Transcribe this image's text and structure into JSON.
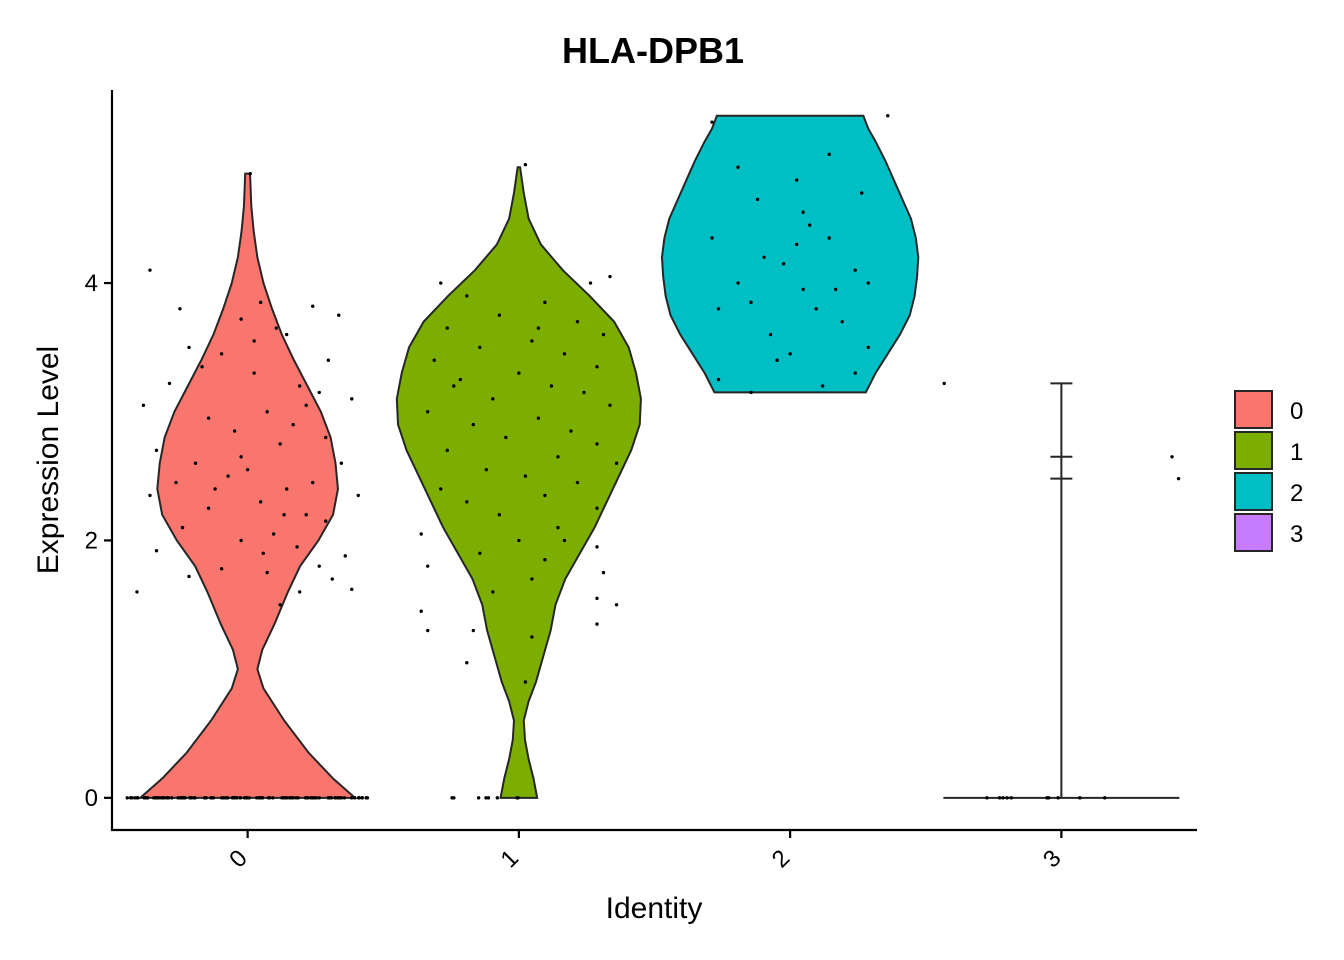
{
  "chart_data": {
    "type": "violin",
    "title": "HLA-DPB1",
    "xlabel": "Identity",
    "ylabel": "Expression Level",
    "categories": [
      "0",
      "1",
      "2",
      "3"
    ],
    "yticks": [
      0,
      2,
      4
    ],
    "ylim": [
      -0.25,
      5.5
    ],
    "colors": [
      "#F8766D",
      "#7CAE00",
      "#00BFC4",
      "#C77CFF"
    ],
    "legend": {
      "placement": "right",
      "entries": [
        "0",
        "1",
        "2",
        "3"
      ]
    },
    "series": [
      {
        "name": "0",
        "range": [
          0,
          4.85
        ],
        "density": [
          [
            0,
            0.88
          ],
          [
            0.15,
            0.7
          ],
          [
            0.35,
            0.5
          ],
          [
            0.6,
            0.3
          ],
          [
            0.85,
            0.13
          ],
          [
            1.0,
            0.08
          ],
          [
            1.15,
            0.12
          ],
          [
            1.35,
            0.22
          ],
          [
            1.6,
            0.33
          ],
          [
            1.8,
            0.43
          ],
          [
            2.0,
            0.58
          ],
          [
            2.2,
            0.7
          ],
          [
            2.4,
            0.74
          ],
          [
            2.6,
            0.72
          ],
          [
            2.8,
            0.68
          ],
          [
            3.0,
            0.6
          ],
          [
            3.2,
            0.49
          ],
          [
            3.4,
            0.38
          ],
          [
            3.6,
            0.28
          ],
          [
            3.8,
            0.2
          ],
          [
            4.0,
            0.13
          ],
          [
            4.2,
            0.08
          ],
          [
            4.4,
            0.05
          ],
          [
            4.6,
            0.03
          ],
          [
            4.85,
            0.02
          ]
        ],
        "zero_count": 120,
        "points": [
          [
            0.02,
            4.85
          ],
          [
            -0.75,
            4.1
          ],
          [
            -0.52,
            3.8
          ],
          [
            0.1,
            3.85
          ],
          [
            0.5,
            3.82
          ],
          [
            0.7,
            3.75
          ],
          [
            -0.05,
            3.72
          ],
          [
            0.3,
            3.6
          ],
          [
            -0.45,
            3.5
          ],
          [
            0.62,
            3.4
          ],
          [
            -0.2,
            3.45
          ],
          [
            0.05,
            3.3
          ],
          [
            0.4,
            3.2
          ],
          [
            -0.6,
            3.22
          ],
          [
            0.55,
            3.15
          ],
          [
            0.8,
            3.1
          ],
          [
            -0.8,
            3.05
          ],
          [
            0.15,
            3.0
          ],
          [
            -0.3,
            2.95
          ],
          [
            0.35,
            2.9
          ],
          [
            -0.1,
            2.85
          ],
          [
            0.6,
            2.8
          ],
          [
            -0.7,
            2.7
          ],
          [
            0.25,
            2.75
          ],
          [
            -0.4,
            2.6
          ],
          [
            0.72,
            2.6
          ],
          [
            0.0,
            2.55
          ],
          [
            -0.15,
            2.5
          ],
          [
            0.5,
            2.45
          ],
          [
            -0.55,
            2.45
          ],
          [
            0.3,
            2.4
          ],
          [
            0.85,
            2.35
          ],
          [
            -0.75,
            2.35
          ],
          [
            0.1,
            2.3
          ],
          [
            -0.3,
            2.25
          ],
          [
            0.45,
            2.2
          ],
          [
            0.6,
            2.15
          ],
          [
            -0.5,
            2.1
          ],
          [
            0.2,
            2.05
          ],
          [
            -0.05,
            2.0
          ],
          [
            0.38,
            1.95
          ],
          [
            -0.7,
            1.92
          ],
          [
            0.75,
            1.88
          ],
          [
            0.55,
            1.8
          ],
          [
            -0.2,
            1.78
          ],
          [
            0.15,
            1.75
          ],
          [
            0.65,
            1.7
          ],
          [
            -0.45,
            1.72
          ],
          [
            0.4,
            1.6
          ],
          [
            0.8,
            1.62
          ],
          [
            -0.85,
            1.6
          ],
          [
            0.25,
            1.5
          ],
          [
            0.05,
            3.55
          ],
          [
            0.22,
            3.65
          ],
          [
            -0.35,
            3.35
          ],
          [
            0.45,
            3.05
          ],
          [
            -0.05,
            2.65
          ],
          [
            0.28,
            2.2
          ],
          [
            0.12,
            1.9
          ],
          [
            -0.25,
            2.4
          ]
        ]
      },
      {
        "name": "1",
        "range": [
          0,
          4.9
        ],
        "density": [
          [
            0,
            0.15
          ],
          [
            0.15,
            0.12
          ],
          [
            0.3,
            0.08
          ],
          [
            0.45,
            0.05
          ],
          [
            0.6,
            0.04
          ],
          [
            0.75,
            0.08
          ],
          [
            0.9,
            0.14
          ],
          [
            1.1,
            0.2
          ],
          [
            1.3,
            0.26
          ],
          [
            1.5,
            0.3
          ],
          [
            1.7,
            0.38
          ],
          [
            1.9,
            0.5
          ],
          [
            2.1,
            0.62
          ],
          [
            2.3,
            0.72
          ],
          [
            2.5,
            0.82
          ],
          [
            2.7,
            0.92
          ],
          [
            2.9,
            0.99
          ],
          [
            3.1,
            1.0
          ],
          [
            3.3,
            0.96
          ],
          [
            3.5,
            0.9
          ],
          [
            3.7,
            0.78
          ],
          [
            3.9,
            0.58
          ],
          [
            4.1,
            0.36
          ],
          [
            4.3,
            0.18
          ],
          [
            4.5,
            0.08
          ],
          [
            4.7,
            0.04
          ],
          [
            4.9,
            0.01
          ]
        ],
        "zero_count": 8,
        "points": [
          [
            0.05,
            4.92
          ],
          [
            -0.6,
            4.0
          ],
          [
            0.55,
            4.0
          ],
          [
            0.7,
            4.05
          ],
          [
            -0.4,
            3.9
          ],
          [
            0.2,
            3.85
          ],
          [
            -0.15,
            3.75
          ],
          [
            0.45,
            3.7
          ],
          [
            -0.55,
            3.65
          ],
          [
            0.65,
            3.6
          ],
          [
            0.1,
            3.55
          ],
          [
            -0.3,
            3.5
          ],
          [
            0.35,
            3.45
          ],
          [
            -0.65,
            3.4
          ],
          [
            0.6,
            3.35
          ],
          [
            0.0,
            3.3
          ],
          [
            -0.45,
            3.25
          ],
          [
            0.25,
            3.2
          ],
          [
            0.5,
            3.15
          ],
          [
            -0.2,
            3.1
          ],
          [
            0.7,
            3.05
          ],
          [
            -0.7,
            3.0
          ],
          [
            0.15,
            2.95
          ],
          [
            -0.35,
            2.9
          ],
          [
            0.4,
            2.85
          ],
          [
            -0.1,
            2.8
          ],
          [
            0.6,
            2.75
          ],
          [
            -0.55,
            2.7
          ],
          [
            0.3,
            2.65
          ],
          [
            0.75,
            2.6
          ],
          [
            -0.25,
            2.55
          ],
          [
            0.05,
            2.5
          ],
          [
            0.45,
            2.45
          ],
          [
            -0.6,
            2.4
          ],
          [
            0.2,
            2.35
          ],
          [
            -0.4,
            2.3
          ],
          [
            0.6,
            2.25
          ],
          [
            -0.15,
            2.2
          ],
          [
            0.3,
            2.1
          ],
          [
            -0.75,
            2.05
          ],
          [
            0.0,
            2.0
          ],
          [
            0.6,
            1.95
          ],
          [
            -0.3,
            1.9
          ],
          [
            0.2,
            1.85
          ],
          [
            -0.7,
            1.8
          ],
          [
            0.65,
            1.75
          ],
          [
            0.1,
            1.7
          ],
          [
            -0.2,
            1.6
          ],
          [
            0.6,
            1.55
          ],
          [
            -0.75,
            1.45
          ],
          [
            0.75,
            1.5
          ],
          [
            -0.35,
            1.3
          ],
          [
            -0.7,
            1.3
          ],
          [
            0.6,
            1.35
          ],
          [
            0.1,
            1.25
          ],
          [
            -0.4,
            1.05
          ],
          [
            0.05,
            0.9
          ],
          [
            0.15,
            3.65
          ],
          [
            -0.5,
            3.2
          ],
          [
            0.35,
            2.0
          ]
        ]
      },
      {
        "name": "2",
        "range": [
          3.15,
          5.3
        ],
        "density": [
          [
            3.15,
            0.62
          ],
          [
            3.3,
            0.7
          ],
          [
            3.45,
            0.8
          ],
          [
            3.6,
            0.9
          ],
          [
            3.75,
            0.98
          ],
          [
            3.9,
            1.02
          ],
          [
            4.05,
            1.04
          ],
          [
            4.2,
            1.05
          ],
          [
            4.35,
            1.03
          ],
          [
            4.5,
            0.99
          ],
          [
            4.65,
            0.92
          ],
          [
            4.8,
            0.85
          ],
          [
            4.95,
            0.78
          ],
          [
            5.1,
            0.7
          ],
          [
            5.2,
            0.64
          ],
          [
            5.3,
            0.6
          ]
        ],
        "zero_count": 0,
        "points": [
          [
            -0.6,
            5.25
          ],
          [
            0.75,
            5.3
          ],
          [
            -0.4,
            4.9
          ],
          [
            0.3,
            5.0
          ],
          [
            0.05,
            4.8
          ],
          [
            -0.25,
            4.65
          ],
          [
            0.1,
            4.55
          ],
          [
            0.55,
            4.7
          ],
          [
            -0.6,
            4.35
          ],
          [
            0.3,
            4.35
          ],
          [
            0.05,
            4.3
          ],
          [
            -0.2,
            4.2
          ],
          [
            0.5,
            4.1
          ],
          [
            -0.4,
            4.0
          ],
          [
            0.1,
            3.95
          ],
          [
            0.6,
            4.0
          ],
          [
            -0.3,
            3.85
          ],
          [
            0.2,
            3.8
          ],
          [
            -0.55,
            3.8
          ],
          [
            0.4,
            3.7
          ],
          [
            -0.15,
            3.6
          ],
          [
            0.6,
            3.5
          ],
          [
            0.0,
            3.45
          ],
          [
            -0.1,
            3.4
          ],
          [
            0.5,
            3.3
          ],
          [
            -0.55,
            3.25
          ],
          [
            0.25,
            3.2
          ],
          [
            -0.3,
            3.15
          ],
          [
            0.15,
            4.45
          ],
          [
            -0.05,
            4.15
          ],
          [
            0.35,
            3.95
          ]
        ]
      },
      {
        "name": "3",
        "range": [
          0,
          3.22
        ],
        "density": [
          [
            0,
            0.95
          ],
          [
            3.22,
            0.0
          ]
        ],
        "zero_count": 10,
        "points": [
          [
            -0.9,
            3.22
          ],
          [
            0.85,
            2.65
          ],
          [
            0.9,
            2.48
          ]
        ]
      }
    ]
  }
}
